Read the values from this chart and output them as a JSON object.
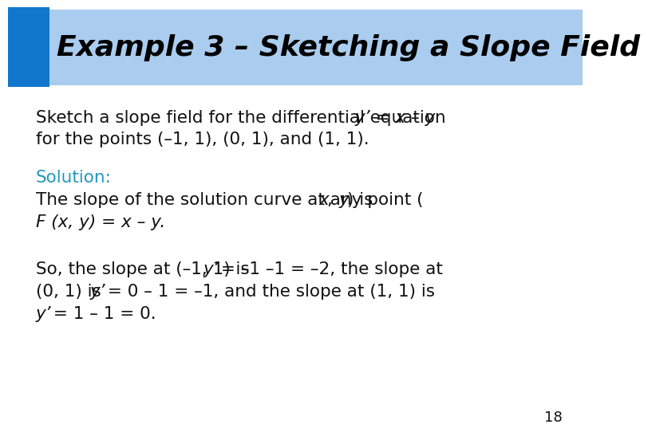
{
  "title": "Example 3 – Sketching a Slope Field",
  "title_bg_color": "#aaccee",
  "title_deco_color": "#1177cc",
  "title_color": "#000000",
  "title_fontsize": 26,
  "bg_color": "#ffffff",
  "solution_color": "#2299bb",
  "body_color": "#111111",
  "body_fontsize": 15.5,
  "page_number": "18",
  "page_number_fontsize": 13
}
